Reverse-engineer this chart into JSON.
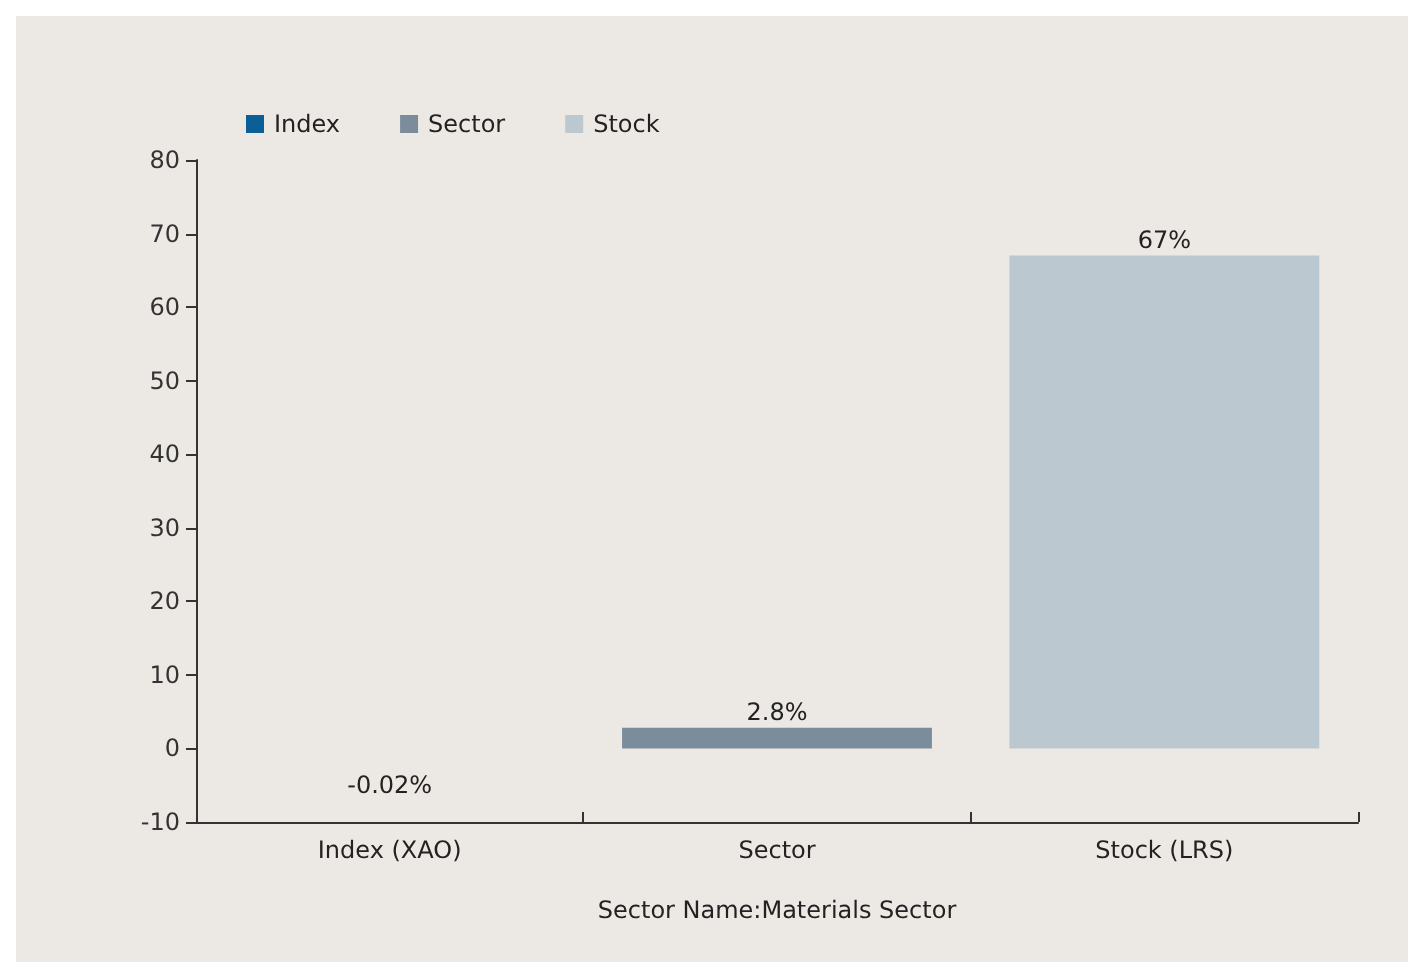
{
  "chart_data": {
    "type": "bar",
    "xlabel": "Sector Name:Materials Sector",
    "categories": [
      "Index (XAO)",
      "Sector",
      "Stock (LRS)"
    ],
    "series": [
      {
        "name": "Index",
        "color": "#0b5f96",
        "values": [
          -0.02,
          null,
          null
        ],
        "value_labels": [
          "-0.02%",
          null,
          null
        ]
      },
      {
        "name": "Sector",
        "color": "#7b8c9a",
        "values": [
          null,
          2.8,
          null
        ],
        "value_labels": [
          null,
          "2.8%",
          null
        ]
      },
      {
        "name": "Stock",
        "color": "#bcc8d0",
        "values": [
          null,
          null,
          67
        ],
        "value_labels": [
          null,
          null,
          "67%"
        ]
      }
    ],
    "ylim": [
      -10,
      80
    ],
    "yticks": [
      -10,
      0,
      10,
      20,
      30,
      40,
      50,
      60,
      70,
      80
    ],
    "grid": false,
    "legend": "top left"
  }
}
